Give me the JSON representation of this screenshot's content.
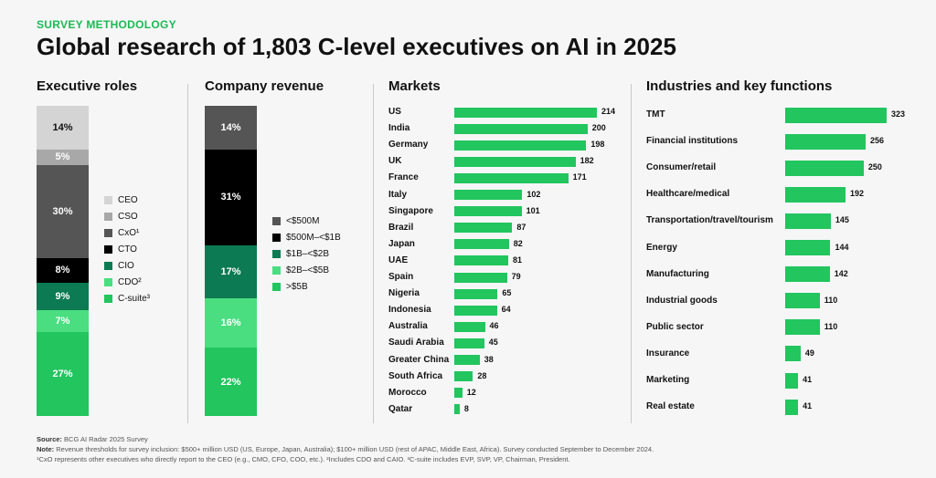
{
  "header": {
    "eyebrow": "SURVEY METHODOLOGY",
    "title": "Global research of 1,803 C-level executives on AI in 2025"
  },
  "colors": {
    "accent_green": "#22c55e",
    "dark_green": "#0c7a52",
    "light_green": "#4ade80",
    "dark_gray": "#555555",
    "light_gray": "#d4d4d4",
    "mid_gray": "#a8a8a8",
    "black": "#000000"
  },
  "chart_data": [
    {
      "type": "bar",
      "stacked": true,
      "title": "Executive roles",
      "unit": "%",
      "series": [
        {
          "name": "CEO",
          "value": 14,
          "label": "14%",
          "color": "#d4d4d4"
        },
        {
          "name": "CSO",
          "value": 5,
          "label": "5%",
          "color": "#a8a8a8"
        },
        {
          "name": "CxO¹",
          "value": 30,
          "label": "30%",
          "color": "#555555"
        },
        {
          "name": "CTO",
          "value": 8,
          "label": "8%",
          "color": "#000000"
        },
        {
          "name": "CIO",
          "value": 9,
          "label": "9%",
          "color": "#0c7a52"
        },
        {
          "name": "CDO²",
          "value": 7,
          "label": "7%",
          "color": "#4ade80"
        },
        {
          "name": "C-suite³",
          "value": 27,
          "label": "27%",
          "color": "#22c55e"
        }
      ],
      "legend_position": "right"
    },
    {
      "type": "bar",
      "stacked": true,
      "title": "Company revenue",
      "unit": "%",
      "series": [
        {
          "name": "<$500M",
          "value": 14,
          "label": "14%",
          "color": "#555555"
        },
        {
          "name": "$500M–<$1B",
          "value": 31,
          "label": "31%",
          "color": "#000000"
        },
        {
          "name": "$1B–<$2B",
          "value": 17,
          "label": "17%",
          "color": "#0c7a52"
        },
        {
          "name": "$2B–<$5B",
          "value": 16,
          "label": "16%",
          "color": "#4ade80"
        },
        {
          "name": ">$5B",
          "value": 22,
          "label": "22%",
          "color": "#22c55e"
        }
      ],
      "legend_position": "right"
    },
    {
      "type": "bar",
      "orientation": "horizontal",
      "title": "Markets",
      "categories": [
        "US",
        "India",
        "Germany",
        "UK",
        "France",
        "Italy",
        "Singapore",
        "Brazil",
        "Japan",
        "UAE",
        "Spain",
        "Nigeria",
        "Indonesia",
        "Australia",
        "Saudi Arabia",
        "Greater China",
        "South Africa",
        "Morocco",
        "Qatar"
      ],
      "values": [
        214,
        200,
        198,
        182,
        171,
        102,
        101,
        87,
        82,
        81,
        79,
        65,
        64,
        46,
        45,
        38,
        28,
        12,
        8
      ],
      "value_labels": [
        "214",
        "200",
        "198",
        "182",
        "171",
        "102",
        "101",
        "87",
        "82",
        "81",
        "79",
        "65",
        "64",
        "46",
        "45",
        "38",
        "28",
        "12",
        "8"
      ],
      "xlim": [
        0,
        214
      ]
    },
    {
      "type": "bar",
      "orientation": "horizontal",
      "title": "Industries and key functions",
      "categories": [
        "TMT",
        "Financial institutions",
        "Consumer/retail",
        "Healthcare/medical",
        "Transportation/travel/tourism",
        "Energy",
        "Manufacturing",
        "Industrial goods",
        "Public sector",
        "Insurance",
        "Marketing",
        "Real estate"
      ],
      "values": [
        323,
        256,
        250,
        192,
        145,
        144,
        142,
        110,
        110,
        49,
        41,
        41
      ],
      "value_labels": [
        "323",
        "256",
        "250",
        "192",
        "145",
        "144",
        "142",
        "110",
        "110",
        "49",
        "41",
        "41"
      ],
      "xlim": [
        0,
        323
      ]
    }
  ],
  "footer": {
    "source_label": "Source:",
    "source_text": " BCG AI Radar 2025 Survey",
    "note_label": "Note:",
    "note_text": " Revenue thresholds for survey inclusion: $500+ million USD (US, Europe, Japan, Australia); $100+ million USD (rest of APAC, Middle East, Africa). Survey conducted September to December 2024.",
    "footnotes": "¹CxO represents other executives who directly report to the CEO (e.g., CMO, CFO, COO, etc.). ²Includes CDO and CAIO. ³C-suite includes EVP, SVP, VP, Chairman, President."
  }
}
